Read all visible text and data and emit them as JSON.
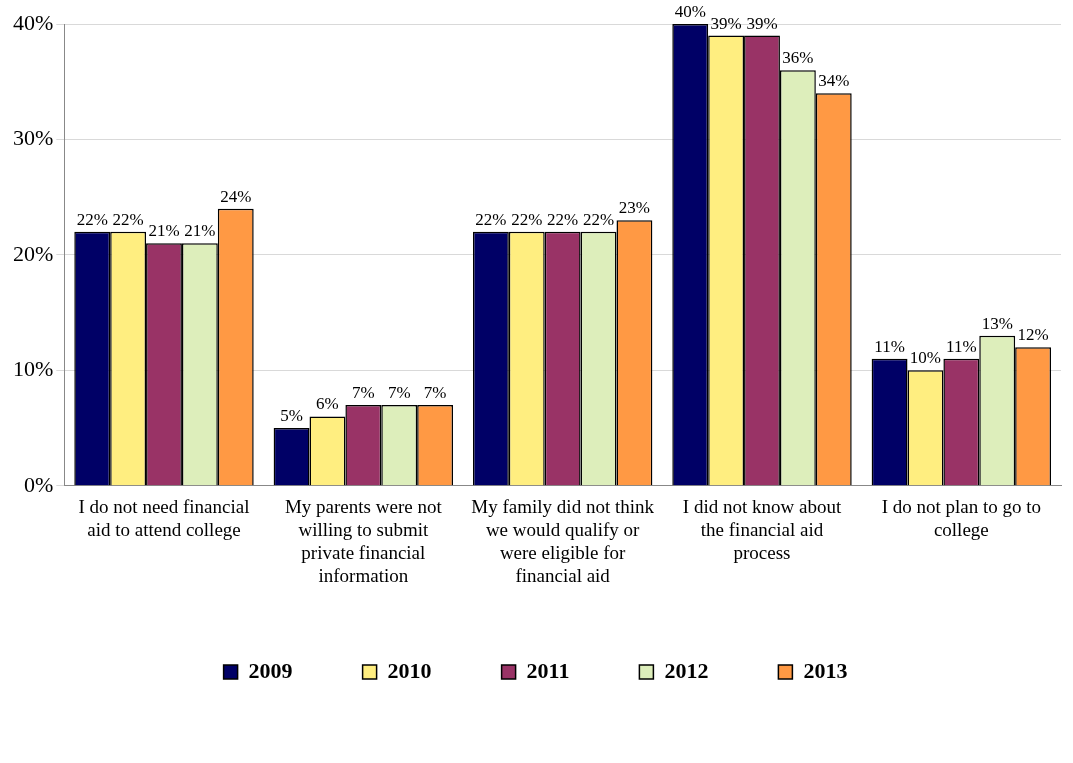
{
  "chart_data": {
    "type": "bar",
    "categories": [
      "I do not need financial aid to attend college",
      "My parents were not willing to submit private financial information",
      "My family did not think we would qualify or were eligible for financial aid",
      "I did not know about the financial aid process",
      "I do not plan to go to college"
    ],
    "series": [
      {
        "name": "2009",
        "color": "#000066",
        "values": [
          22,
          5,
          22,
          40,
          11
        ],
        "value_labels": [
          "22%",
          "5%",
          "22%",
          "40%",
          "11%"
        ]
      },
      {
        "name": "2010",
        "color": "#ffee80",
        "values": [
          22,
          6,
          22,
          39,
          10
        ],
        "value_labels": [
          "22%",
          "6%",
          "22%",
          "39%",
          "10%"
        ]
      },
      {
        "name": "2011",
        "color": "#993366",
        "values": [
          21,
          7,
          22,
          39,
          11
        ],
        "value_labels": [
          "21%",
          "7%",
          "22%",
          "39%",
          "11%"
        ]
      },
      {
        "name": "2012",
        "color": "#ddeebb",
        "values": [
          21,
          7,
          22,
          36,
          13
        ],
        "value_labels": [
          "21%",
          "7%",
          "22%",
          "36%",
          "13%"
        ]
      },
      {
        "name": "2013",
        "color": "#ff9944",
        "values": [
          24,
          7,
          23,
          34,
          12
        ],
        "value_labels": [
          "24%",
          "7%",
          "23%",
          "34%",
          "12%"
        ]
      }
    ],
    "ylim": [
      0,
      40
    ],
    "yticks": [
      {
        "value": 0,
        "label": "0%"
      },
      {
        "value": 10,
        "label": "10%"
      },
      {
        "value": 20,
        "label": "20%"
      },
      {
        "value": 30,
        "label": "30%"
      },
      {
        "value": 40,
        "label": "40%"
      }
    ],
    "grid": "y",
    "legend": "bottom"
  }
}
